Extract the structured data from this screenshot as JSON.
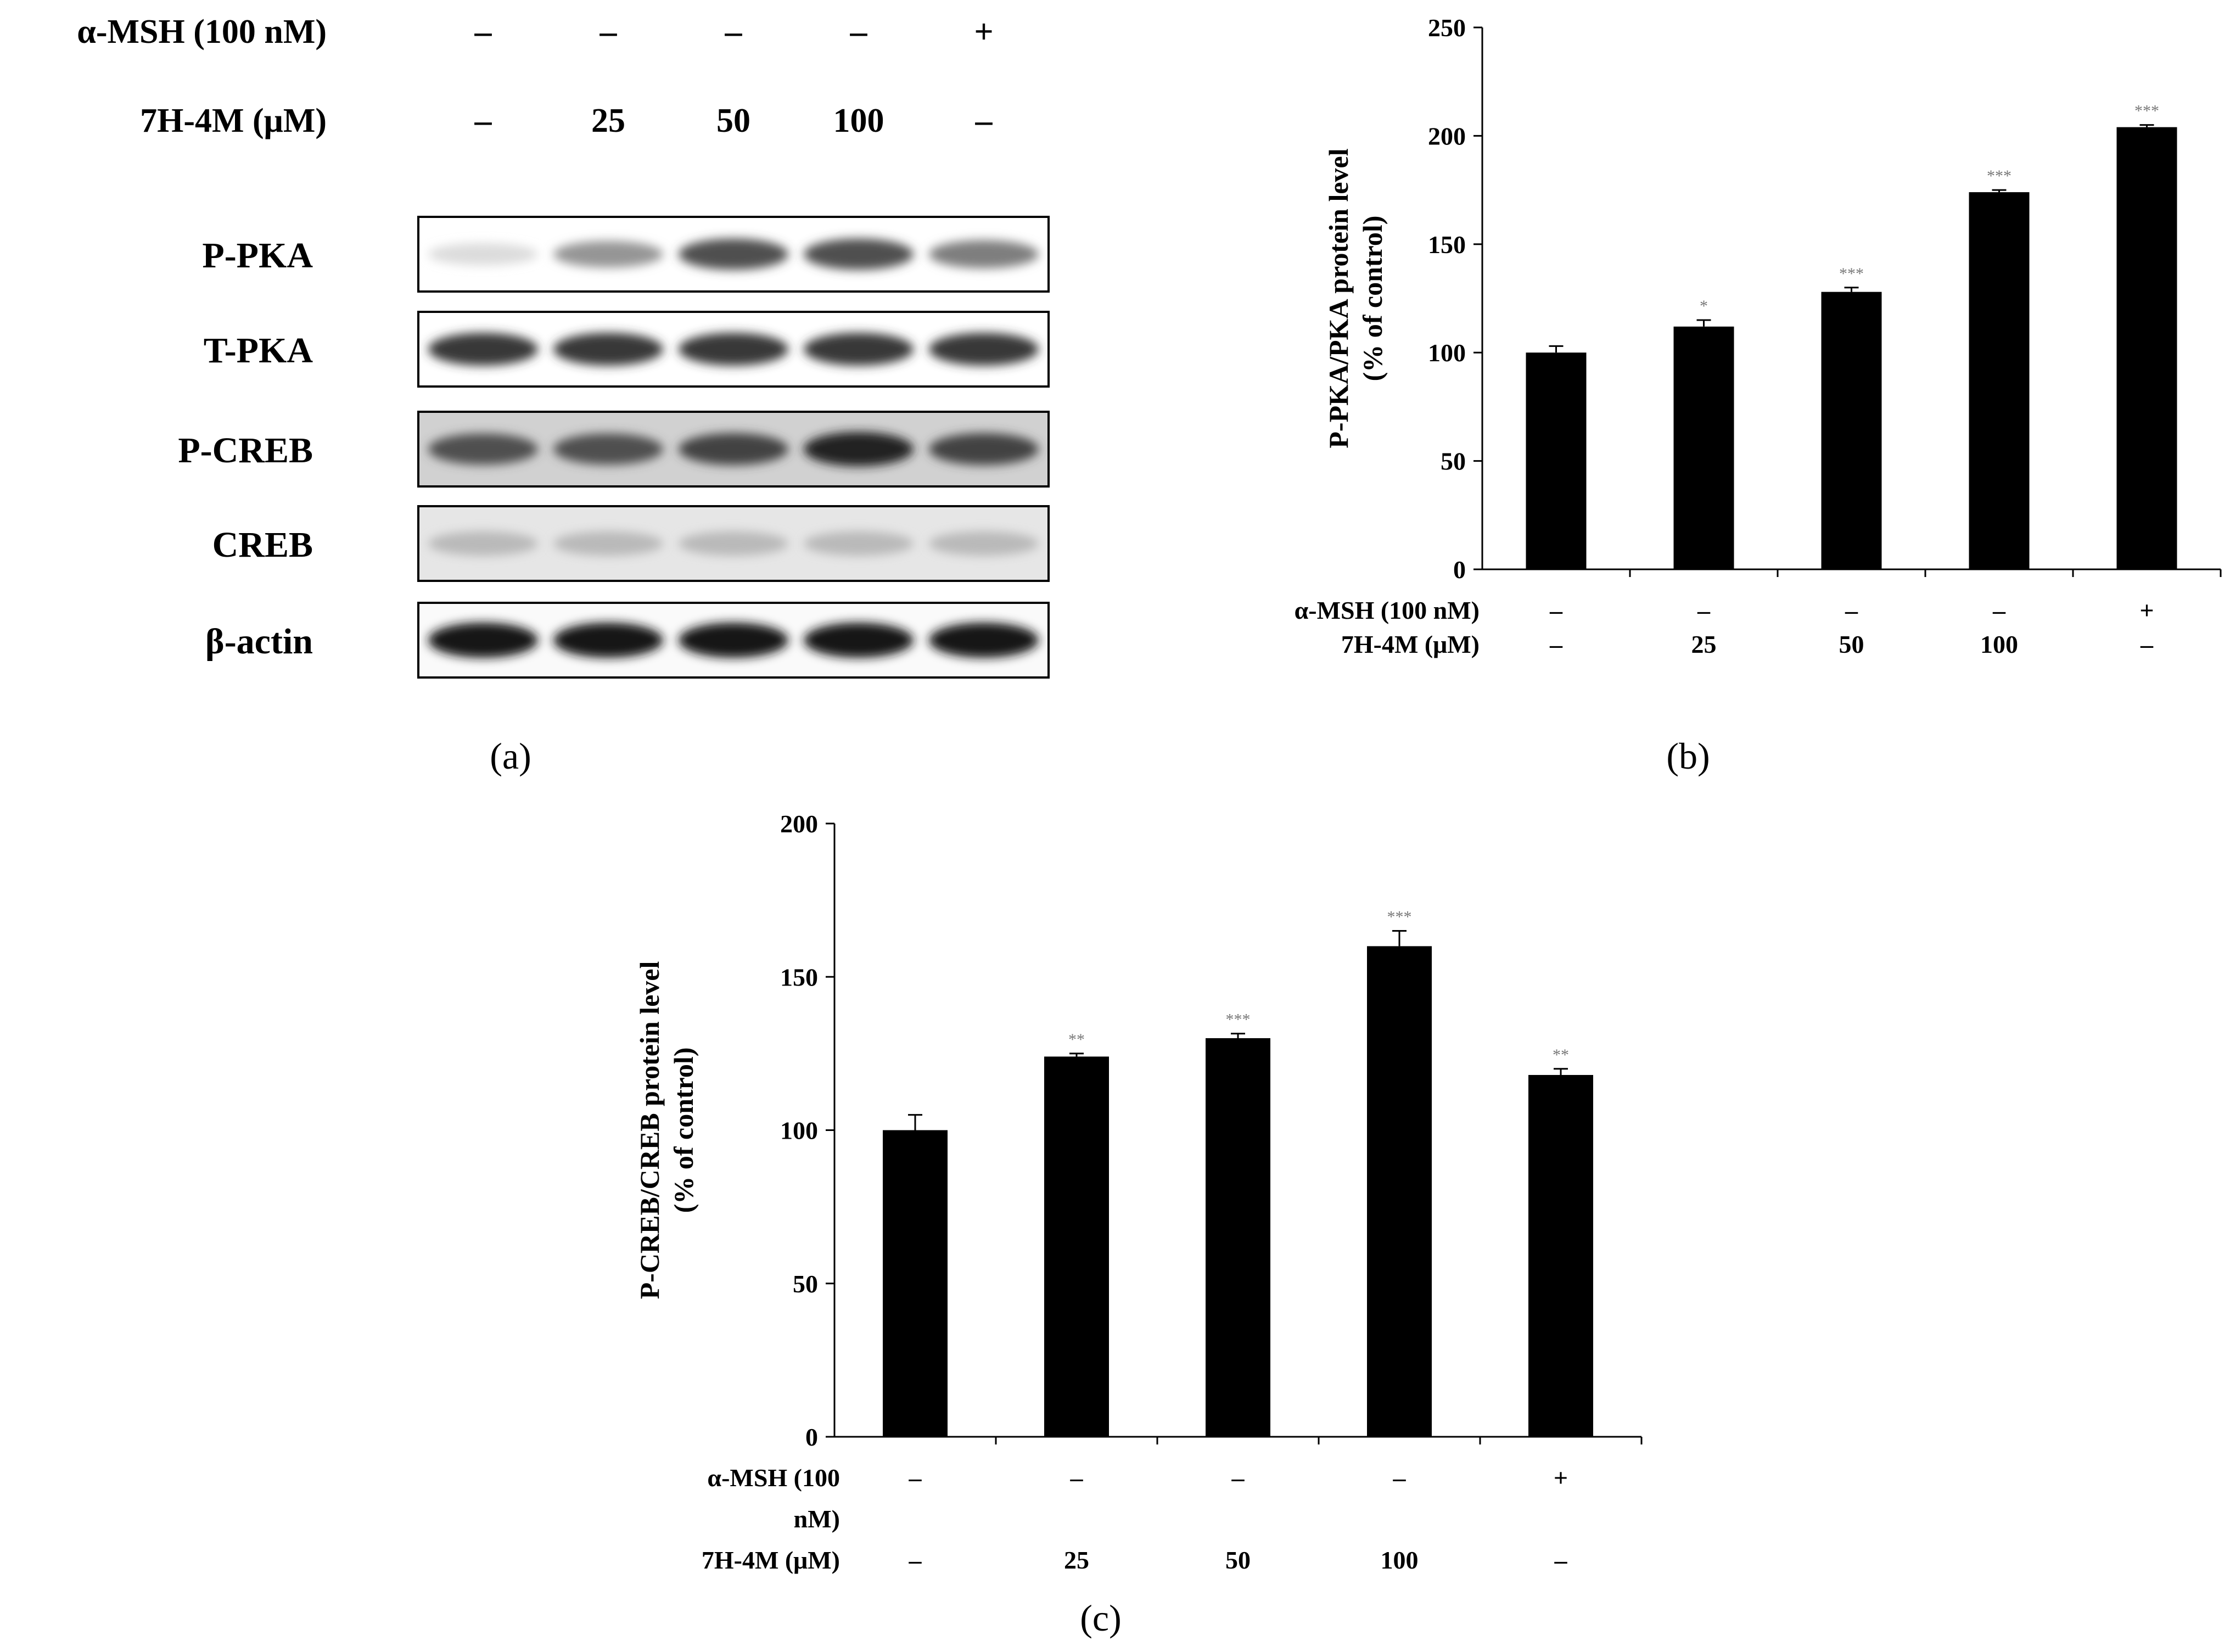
{
  "panel_labels": [
    "(a)",
    "(b)",
    "(c)"
  ],
  "blot": {
    "treatment_rows": [
      {
        "label": "α-MSH (100 nM)",
        "values": [
          "–",
          "–",
          "–",
          "–",
          "+"
        ]
      },
      {
        "label": "7H-4M (μM)",
        "values": [
          "–",
          "25",
          "50",
          "100",
          "–"
        ]
      }
    ],
    "proteins": [
      {
        "name": "P-PKA",
        "intensity": [
          0.15,
          0.45,
          0.75,
          0.75,
          0.55
        ],
        "background": 0.0
      },
      {
        "name": "T-PKA",
        "intensity": [
          0.85,
          0.85,
          0.85,
          0.85,
          0.85
        ],
        "background": 0.0
      },
      {
        "name": "P-CREB",
        "intensity": [
          0.75,
          0.75,
          0.8,
          0.95,
          0.8
        ],
        "background": 0.18
      },
      {
        "name": "CREB",
        "intensity": [
          0.3,
          0.3,
          0.3,
          0.3,
          0.3
        ],
        "background": 0.1
      },
      {
        "name": "β-actin",
        "intensity": [
          1.0,
          1.0,
          1.0,
          1.0,
          1.0
        ],
        "background": 0.02
      }
    ]
  },
  "chart_data": [
    {
      "type": "bar",
      "panel": "(b)",
      "ylabel": "P-PKA/PKA protein level (% of control)",
      "ylabel_lines": [
        "P-PKA/PKA protein level",
        "(% of control)"
      ],
      "ylim": [
        0,
        250
      ],
      "yticks": [
        0,
        50,
        100,
        150,
        200,
        250
      ],
      "treatment_rows": [
        {
          "label_lines": [
            "α-MSH (100 nM)"
          ],
          "values": [
            "–",
            "–",
            "–",
            "–",
            "+"
          ]
        },
        {
          "label_lines": [
            "7H-4M (μM)"
          ],
          "values": [
            "–",
            "25",
            "50",
            "100",
            "–"
          ]
        }
      ],
      "values": [
        100,
        112,
        128,
        174,
        204
      ],
      "errors": [
        3,
        3,
        2,
        1,
        1
      ],
      "significance": [
        "",
        "*",
        "***",
        "***",
        "***"
      ]
    },
    {
      "type": "bar",
      "panel": "(c)",
      "ylabel": "P-CREB/CREB protein level (% of control)",
      "ylabel_lines": [
        "P-CREB/CREB protein level",
        "(% of control)"
      ],
      "ylim": [
        0,
        200
      ],
      "yticks": [
        0,
        50,
        100,
        150,
        200
      ],
      "treatment_rows": [
        {
          "label_lines": [
            "α-MSH (100",
            "nM)"
          ],
          "values": [
            "–",
            "–",
            "–",
            "–",
            "+"
          ]
        },
        {
          "label_lines": [
            "7H-4M (μM)"
          ],
          "values": [
            "–",
            "25",
            "50",
            "100",
            "–"
          ]
        }
      ],
      "values": [
        100,
        124,
        130,
        160,
        118
      ],
      "errors": [
        5,
        1,
        1.5,
        5,
        2
      ],
      "significance": [
        "",
        "**",
        "***",
        "***",
        "**"
      ]
    }
  ]
}
